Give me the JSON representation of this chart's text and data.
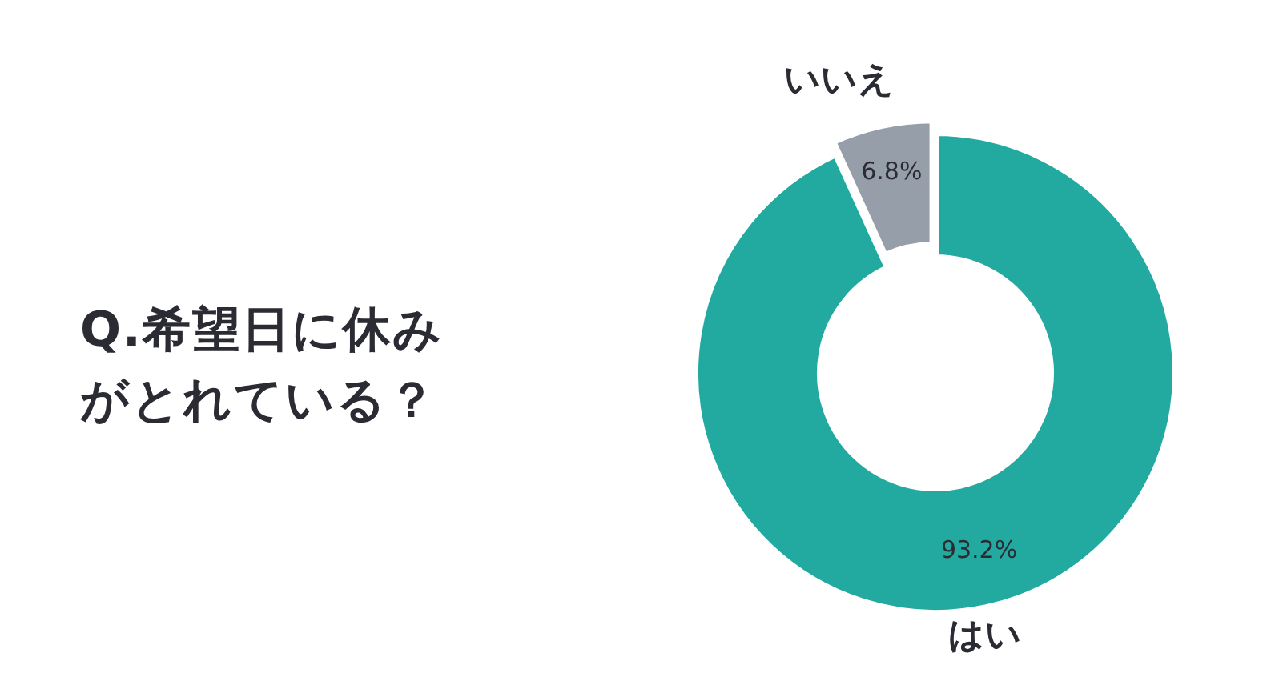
{
  "chart_data": {
    "type": "donut",
    "title": "Q.希望日に休みがとれている？",
    "categories": [
      "はい",
      "いいえ"
    ],
    "values": [
      93.2,
      6.8
    ],
    "value_labels": [
      "93.2%",
      "6.8%"
    ],
    "colors": [
      "#22aaa1",
      "#969fa9"
    ]
  }
}
